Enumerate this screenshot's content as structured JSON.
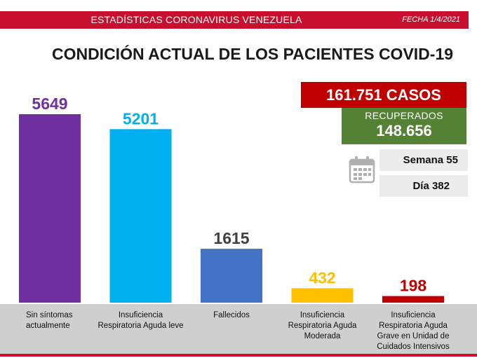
{
  "header": {
    "title": "ESTADÍSTICAS CORONAVIRUS VENEZUELA",
    "date": "FECHA 1/4/2021"
  },
  "main_title": "CONDICIÓN ACTUAL DE LOS PACIENTES COVID-19",
  "summary": {
    "cases": "161.751 CASOS",
    "recovered_label": "RECUPERADOS",
    "recovered_value": "148.656",
    "week": "Semana 55",
    "day": "Día 382"
  },
  "icons": {
    "calendar": "calendar-icon"
  },
  "colors": {
    "header_red": "#c8102e",
    "cases_red": "#c00000",
    "recovered_green": "#548235",
    "footer_gray": "#cfcfcf"
  },
  "chart_data": {
    "type": "bar",
    "categories": [
      "Sin síntomas\nactualmente",
      "Insuficiencia\nRespiratoria Aguda leve",
      "Fallecidos",
      "Insuficiencia\nRespiratoria Aguda\nModerada",
      "Insuficiencia\nRespiratoria Aguda\nGrave en Unidad de\nCuidados Intensivos"
    ],
    "values": [
      5649,
      5201,
      1615,
      432,
      198
    ],
    "bar_colors": [
      "#7030a0",
      "#00b0f0",
      "#4472c4",
      "#ffc000",
      "#c00000"
    ],
    "label_colors": [
      "#7030a0",
      "#00b0f0",
      "#404040",
      "#ffc000",
      "#c00000"
    ],
    "title": "CONDICIÓN ACTUAL DE LOS PACIENTES COVID-19",
    "xlabel": "",
    "ylabel": "",
    "ylim": [
      0,
      5649
    ],
    "grid": false,
    "legend": "none"
  }
}
